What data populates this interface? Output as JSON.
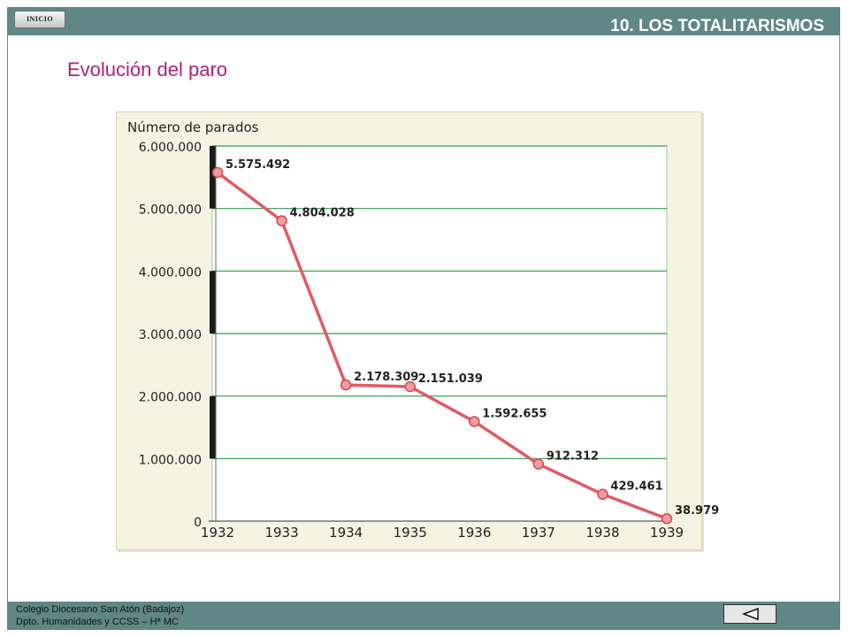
{
  "header": {
    "home_button_label": "INICIO",
    "section_title": "10. LOS TOTALITARISMOS"
  },
  "page": {
    "title": "Evolución del paro"
  },
  "chart_data": {
    "type": "line",
    "title": "",
    "xlabel": "",
    "ylabel": "Número de parados",
    "x": [
      "1932",
      "1933",
      "1934",
      "1935",
      "1936",
      "1937",
      "1938",
      "1939"
    ],
    "series": [
      {
        "name": "",
        "values": [
          5575492,
          4804028,
          2178309,
          2151039,
          1592655,
          912312,
          429461,
          38979
        ],
        "value_labels": [
          "5.575.492",
          "4.804.028",
          "2.178.309",
          "2.151.039",
          "1.592.655",
          "912.312",
          "429.461",
          "38.979"
        ],
        "color": "#e05a63"
      }
    ],
    "ylim": [
      0,
      6000000
    ],
    "yticks": [
      0,
      1000000,
      2000000,
      3000000,
      4000000,
      5000000,
      6000000
    ],
    "ytick_labels": [
      "0",
      "1.000.000",
      "2.000.000",
      "3.000.000",
      "4.000.000",
      "5.000.000",
      "6.000.000"
    ],
    "grid": true,
    "grid_color": "#2e9a4e",
    "legend": "none"
  },
  "footer": {
    "line1": "Colegio Diocesano San Atón (Badajoz)",
    "line2": "Dpto. Humanidades y CCSS – Hª MC",
    "back_button_icon": "triangle-left-icon"
  },
  "colors": {
    "bar": "#5f8785",
    "title": "#b0207a",
    "chart_bg": "#f5f3e2"
  }
}
